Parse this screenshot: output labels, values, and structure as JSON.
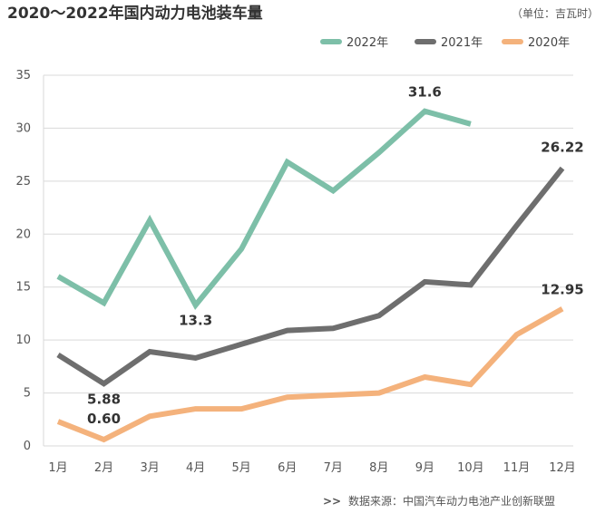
{
  "chart_data": {
    "type": "line",
    "title": "2020～2022年国内动力电池装车量",
    "unit": "（单位：吉瓦时）",
    "xlabel": "",
    "ylabel": "",
    "categories": [
      "1月",
      "2月",
      "3月",
      "4月",
      "5月",
      "6月",
      "7月",
      "8月",
      "9月",
      "10月",
      "11月",
      "12月"
    ],
    "ylim": [
      0,
      35
    ],
    "yticks": [
      0,
      5,
      10,
      15,
      20,
      25,
      30,
      35
    ],
    "grid": true,
    "legend_position": "top-right",
    "series": [
      {
        "name": "2022年",
        "color": "#7dbfa8",
        "values": [
          16.0,
          13.5,
          21.3,
          13.3,
          18.6,
          26.8,
          24.1,
          27.7,
          31.6,
          30.4,
          null,
          null
        ]
      },
      {
        "name": "2021年",
        "color": "#6e6e6e",
        "values": [
          8.6,
          5.88,
          8.9,
          8.3,
          9.6,
          10.9,
          11.1,
          12.3,
          15.5,
          15.2,
          20.8,
          26.22
        ]
      },
      {
        "name": "2020年",
        "color": "#f4b27c",
        "values": [
          2.3,
          0.6,
          2.8,
          3.5,
          3.5,
          4.6,
          4.8,
          5.0,
          6.5,
          5.8,
          10.5,
          12.95
        ]
      }
    ],
    "annotations": [
      {
        "series": 0,
        "index": 8,
        "text": "31.6"
      },
      {
        "series": 0,
        "index": 3,
        "text": "13.3"
      },
      {
        "series": 1,
        "index": 11,
        "text": "26.22"
      },
      {
        "series": 1,
        "index": 1,
        "text": "5.88"
      },
      {
        "series": 2,
        "index": 11,
        "text": "12.95"
      },
      {
        "series": 2,
        "index": 1,
        "text": "0.60"
      }
    ],
    "source_mark": ">>",
    "source": "数据来源：中国汽车动力电池产业创新联盟"
  }
}
